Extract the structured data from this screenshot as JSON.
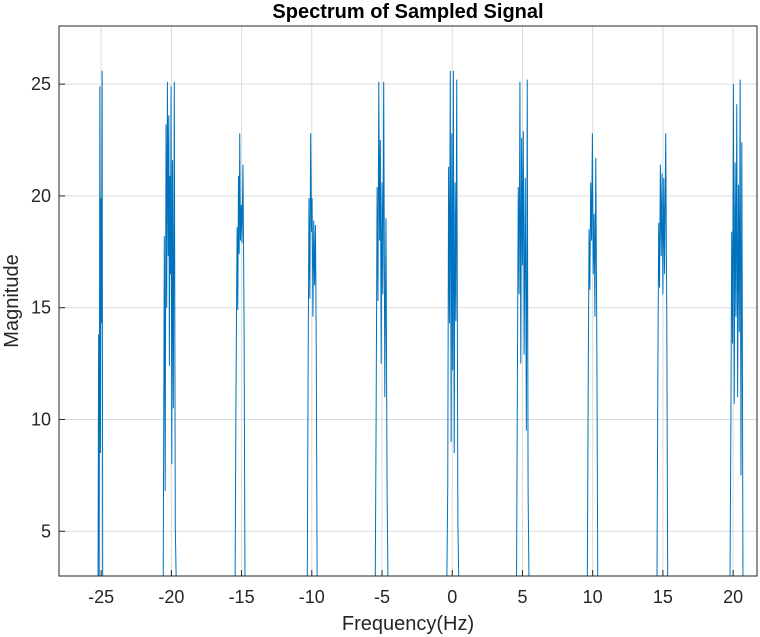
{
  "chart_data": {
    "type": "line",
    "title": "Spectrum of Sampled Signal",
    "xlabel": "Frequency(Hz)",
    "ylabel": "Magnitude",
    "xlim": [
      -28,
      21.7
    ],
    "ylim": [
      3,
      27.6
    ],
    "grid": true,
    "x_ticks": [
      -25,
      -20,
      -15,
      -10,
      -5,
      0,
      5,
      10,
      15,
      20
    ],
    "x_tick_labels": [
      "-25",
      "-20",
      "-15",
      "-10",
      "-5",
      "0",
      "5",
      "10",
      "15",
      "20"
    ],
    "y_ticks": [
      5,
      10,
      15,
      20,
      25
    ],
    "y_tick_labels": [
      "5",
      "10",
      "15",
      "20",
      "25"
    ],
    "colors": {
      "line": "#0072bd",
      "grid": "#dcdcdc",
      "axis": "#262626"
    },
    "series": [
      {
        "values": [
          [
            -25.22,
            3.0
          ],
          [
            -25.18,
            13.8
          ],
          [
            -25.14,
            3.0
          ],
          [
            -25.09,
            24.9
          ],
          [
            -25.05,
            8.5
          ],
          [
            -25.01,
            19.9
          ],
          [
            -24.97,
            14.3
          ],
          [
            -24.93,
            25.6
          ],
          [
            -24.89,
            3.0
          ],
          [
            -20.58,
            3.0
          ],
          [
            -20.5,
            18.2
          ],
          [
            -20.44,
            6.8
          ],
          [
            -20.38,
            23.2
          ],
          [
            -20.33,
            15.0
          ],
          [
            -20.28,
            25.1
          ],
          [
            -20.22,
            17.3
          ],
          [
            -20.18,
            23.6
          ],
          [
            -20.14,
            12.4
          ],
          [
            -20.1,
            20.9
          ],
          [
            -20.06,
            16.5
          ],
          [
            -20.02,
            24.9
          ],
          [
            -19.97,
            8.0
          ],
          [
            -19.92,
            21.6
          ],
          [
            -19.86,
            10.5
          ],
          [
            -19.79,
            25.1
          ],
          [
            -19.72,
            5.2
          ],
          [
            -19.66,
            3.0
          ],
          [
            -15.46,
            3.0
          ],
          [
            -15.4,
            10.9
          ],
          [
            -15.32,
            18.6
          ],
          [
            -15.27,
            14.9
          ],
          [
            -15.22,
            20.9
          ],
          [
            -15.17,
            17.4
          ],
          [
            -15.13,
            22.8
          ],
          [
            -15.08,
            18.0
          ],
          [
            -15.02,
            19.6
          ],
          [
            -14.97,
            17.9
          ],
          [
            -14.9,
            21.4
          ],
          [
            -14.82,
            14.0
          ],
          [
            -14.76,
            3.0
          ],
          [
            -10.32,
            3.0
          ],
          [
            -10.26,
            12.6
          ],
          [
            -10.2,
            19.9
          ],
          [
            -10.14,
            15.4
          ],
          [
            -10.08,
            22.8
          ],
          [
            -10.02,
            18.4
          ],
          [
            -9.98,
            19.9
          ],
          [
            -9.92,
            14.6
          ],
          [
            -9.86,
            18.9
          ],
          [
            -9.8,
            16.0
          ],
          [
            -9.74,
            18.7
          ],
          [
            -9.68,
            12.9
          ],
          [
            -9.62,
            3.0
          ],
          [
            -5.48,
            3.0
          ],
          [
            -5.42,
            10.1
          ],
          [
            -5.35,
            20.4
          ],
          [
            -5.29,
            15.3
          ],
          [
            -5.23,
            25.1
          ],
          [
            -5.17,
            18.0
          ],
          [
            -5.12,
            22.5
          ],
          [
            -5.06,
            12.5
          ],
          [
            -5.0,
            20.6
          ],
          [
            -4.94,
            15.6
          ],
          [
            -4.88,
            25.1
          ],
          [
            -4.8,
            11.0
          ],
          [
            -4.72,
            19.0
          ],
          [
            -4.64,
            7.0
          ],
          [
            -4.58,
            3.0
          ],
          [
            -0.38,
            3.0
          ],
          [
            -0.32,
            7.0
          ],
          [
            -0.26,
            21.3
          ],
          [
            -0.2,
            14.3
          ],
          [
            -0.14,
            25.6
          ],
          [
            -0.08,
            9.0
          ],
          [
            -0.03,
            22.8
          ],
          [
            0.03,
            12.2
          ],
          [
            0.08,
            25.6
          ],
          [
            0.14,
            8.5
          ],
          [
            0.2,
            20.6
          ],
          [
            0.26,
            14.4
          ],
          [
            0.32,
            25.2
          ],
          [
            0.4,
            5.5
          ],
          [
            0.46,
            3.0
          ],
          [
            4.58,
            3.0
          ],
          [
            4.64,
            11.8
          ],
          [
            4.7,
            20.4
          ],
          [
            4.76,
            15.6
          ],
          [
            4.82,
            25.1
          ],
          [
            4.88,
            12.5
          ],
          [
            4.94,
            22.6
          ],
          [
            5.0,
            16.9
          ],
          [
            5.06,
            22.9
          ],
          [
            5.12,
            12.9
          ],
          [
            5.2,
            20.8
          ],
          [
            5.28,
            9.5
          ],
          [
            5.34,
            25.2
          ],
          [
            5.4,
            6.9
          ],
          [
            5.46,
            3.0
          ],
          [
            9.62,
            3.0
          ],
          [
            9.68,
            11.4
          ],
          [
            9.74,
            18.5
          ],
          [
            9.8,
            15.8
          ],
          [
            9.86,
            20.6
          ],
          [
            9.92,
            18.0
          ],
          [
            9.98,
            22.8
          ],
          [
            10.04,
            16.5
          ],
          [
            10.1,
            19.2
          ],
          [
            10.16,
            14.6
          ],
          [
            10.22,
            21.7
          ],
          [
            10.3,
            12.8
          ],
          [
            10.36,
            3.0
          ],
          [
            14.58,
            3.0
          ],
          [
            14.64,
            12.0
          ],
          [
            14.7,
            18.8
          ],
          [
            14.76,
            15.9
          ],
          [
            14.82,
            21.4
          ],
          [
            14.88,
            17.3
          ],
          [
            14.94,
            21.0
          ],
          [
            15.0,
            15.6
          ],
          [
            15.06,
            20.8
          ],
          [
            15.12,
            16.5
          ],
          [
            15.2,
            22.8
          ],
          [
            15.28,
            14.0
          ],
          [
            15.34,
            3.0
          ],
          [
            19.78,
            3.0
          ],
          [
            19.84,
            9.8
          ],
          [
            19.9,
            18.4
          ],
          [
            19.96,
            13.4
          ],
          [
            20.02,
            25.0
          ],
          [
            20.08,
            10.7
          ],
          [
            20.14,
            21.5
          ],
          [
            20.2,
            14.6
          ],
          [
            20.26,
            24.1
          ],
          [
            20.32,
            11.0
          ],
          [
            20.38,
            20.5
          ],
          [
            20.44,
            13.9
          ],
          [
            20.5,
            25.2
          ],
          [
            20.56,
            7.5
          ],
          [
            20.62,
            22.4
          ],
          [
            20.7,
            3.0
          ]
        ]
      }
    ]
  }
}
